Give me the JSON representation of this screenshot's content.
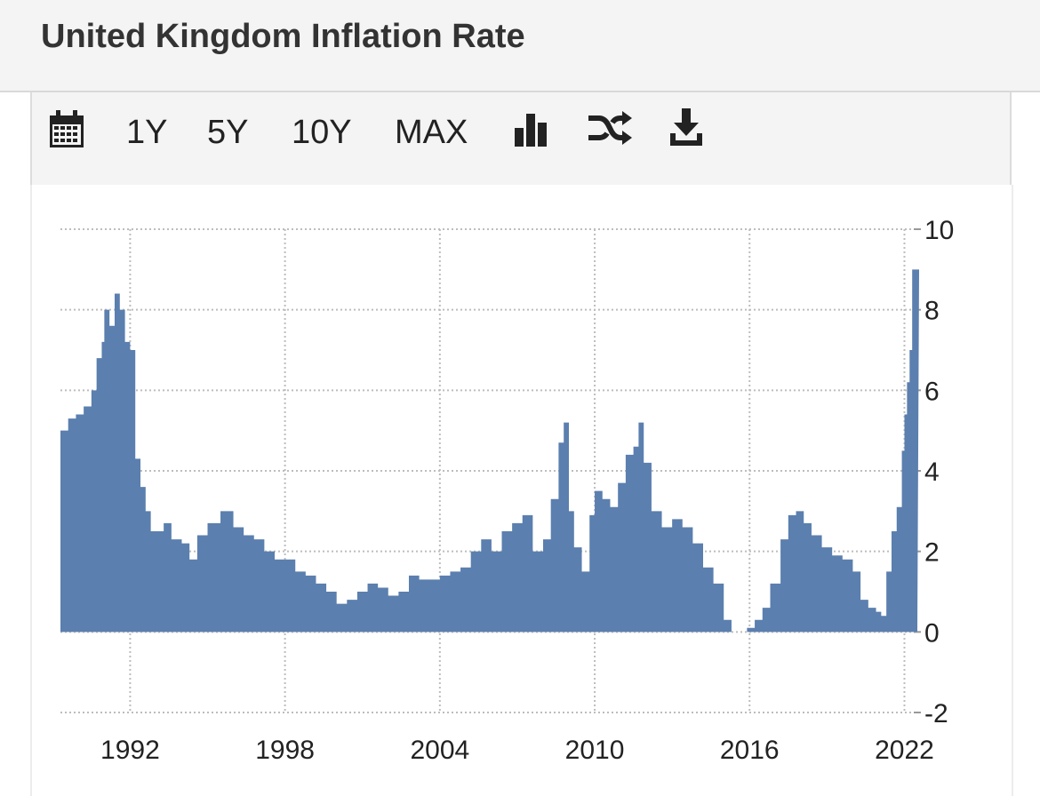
{
  "header": {
    "title": "United Kingdom Inflation Rate"
  },
  "toolbar": {
    "calendar_icon": "calendar-icon",
    "ranges": [
      "1Y",
      "5Y",
      "10Y",
      "MAX"
    ],
    "bar_chart_icon": "bar-chart-icon",
    "compare_icon": "shuffle-icon",
    "download_icon": "download-icon"
  },
  "colors": {
    "area": "#5b7fae",
    "grid": "#bdbdbd",
    "text": "#222222"
  },
  "chart_data": {
    "type": "area",
    "xlabel": "",
    "ylabel": "",
    "y_axis_side": "right",
    "grid": true,
    "xlim": [
      1989.3,
      2022.5
    ],
    "ylim": [
      -2,
      10
    ],
    "x_ticks": [
      1992,
      1998,
      2004,
      2010,
      2016,
      2022
    ],
    "y_ticks": [
      -2,
      0,
      2,
      4,
      6,
      8,
      10
    ],
    "series": [
      {
        "x": [
          1989.3,
          1989.6,
          1989.9,
          1990.2,
          1990.5,
          1990.7,
          1990.9,
          1991.0,
          1991.2,
          1991.4,
          1991.6,
          1991.8,
          1992.0,
          1992.2,
          1992.4,
          1992.6,
          1992.8,
          1993.0,
          1993.3,
          1993.6,
          1994.0,
          1994.3,
          1994.6,
          1995.0,
          1995.5,
          1996.0,
          1996.4,
          1996.8,
          1997.2,
          1997.6,
          1998.0,
          1998.4,
          1998.8,
          1999.2,
          1999.6,
          2000.0,
          2000.4,
          2000.8,
          2001.2,
          2001.6,
          2002.0,
          2002.4,
          2002.8,
          2003.2,
          2003.6,
          2004.0,
          2004.4,
          2004.8,
          2005.2,
          2005.6,
          2006.0,
          2006.4,
          2006.8,
          2007.2,
          2007.6,
          2008.0,
          2008.3,
          2008.6,
          2008.8,
          2009.0,
          2009.2,
          2009.5,
          2009.8,
          2010.0,
          2010.3,
          2010.6,
          2010.9,
          2011.2,
          2011.5,
          2011.7,
          2011.9,
          2012.2,
          2012.6,
          2013.0,
          2013.4,
          2013.8,
          2014.2,
          2014.6,
          2015.0,
          2015.3,
          2015.6,
          2015.9,
          2016.2,
          2016.5,
          2016.8,
          2017.2,
          2017.5,
          2017.8,
          2018.1,
          2018.4,
          2018.8,
          2019.2,
          2019.6,
          2020.0,
          2020.3,
          2020.6,
          2020.9,
          2021.1,
          2021.3,
          2021.5,
          2021.7,
          2021.9,
          2022.0,
          2022.1,
          2022.2,
          2022.3,
          2022.4,
          2022.5
        ],
        "y": [
          5.0,
          5.3,
          5.4,
          5.6,
          6.0,
          6.8,
          7.2,
          8.0,
          7.6,
          8.4,
          8.0,
          7.2,
          7.0,
          4.3,
          3.6,
          3.0,
          2.5,
          2.5,
          2.7,
          2.3,
          2.2,
          1.8,
          2.4,
          2.7,
          3.0,
          2.6,
          2.4,
          2.3,
          2.0,
          1.8,
          1.8,
          1.5,
          1.4,
          1.2,
          1.0,
          0.7,
          0.8,
          1.0,
          1.2,
          1.1,
          0.9,
          1.0,
          1.4,
          1.3,
          1.3,
          1.4,
          1.5,
          1.6,
          2.0,
          2.3,
          2.0,
          2.5,
          2.7,
          2.9,
          2.0,
          2.3,
          3.3,
          4.7,
          5.2,
          3.0,
          2.1,
          1.5,
          2.9,
          3.5,
          3.3,
          3.1,
          3.7,
          4.4,
          4.6,
          5.2,
          4.2,
          3.0,
          2.6,
          2.8,
          2.6,
          2.2,
          1.6,
          1.2,
          0.3,
          0.0,
          0.0,
          0.1,
          0.3,
          0.6,
          1.2,
          2.3,
          2.9,
          3.0,
          2.7,
          2.4,
          2.1,
          1.9,
          1.8,
          1.5,
          0.8,
          0.6,
          0.5,
          0.4,
          1.5,
          2.5,
          3.1,
          4.5,
          5.4,
          6.2,
          7.0,
          9.0,
          9.0,
          9.0
        ],
        "x_units": "year"
      }
    ]
  }
}
